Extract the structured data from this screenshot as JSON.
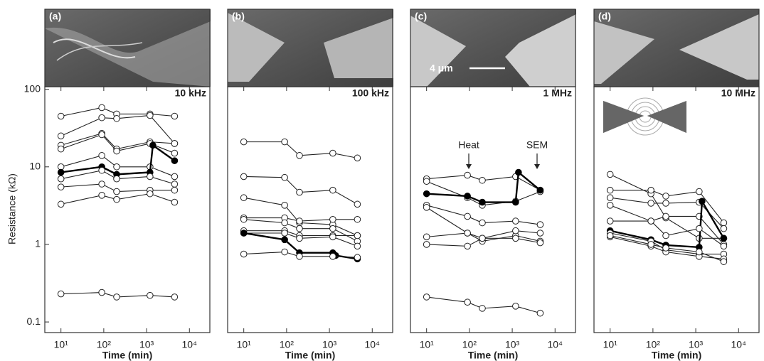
{
  "chart_data": [
    {
      "type": "line",
      "label": "(a)",
      "frequency": "10 kHz",
      "xlabel": "Time (min)",
      "ylabel": "Resistance (kΩ)",
      "log_x": true,
      "log_y": true,
      "xlim": [
        4.2,
        30000
      ],
      "ylim": [
        0.073,
        108
      ],
      "xticks": [
        {
          "value": 10,
          "label": "10¹"
        },
        {
          "value": 100,
          "label": "10²"
        },
        {
          "value": 1000,
          "label": "10³"
        },
        {
          "value": 10000,
          "label": "10⁴"
        }
      ],
      "yticks": [
        0.1,
        1,
        10,
        100
      ],
      "series": [
        {
          "color": "#222",
          "x": [
            10,
            90,
            200,
            1200,
            4500
          ],
          "values": [
            45,
            58,
            48,
            48,
            45
          ]
        },
        {
          "color": "#222",
          "x": [
            10,
            90,
            200,
            1200,
            4500
          ],
          "values": [
            25,
            43,
            42,
            46,
            20
          ]
        },
        {
          "color": "#222",
          "x": [
            10,
            90,
            200,
            1200,
            4500
          ],
          "values": [
            19,
            27,
            17,
            21,
            20
          ]
        },
        {
          "color": "#222",
          "x": [
            10,
            90,
            200,
            1200,
            4500
          ],
          "values": [
            17,
            26,
            16,
            20,
            15
          ]
        },
        {
          "color": "#222",
          "x": [
            10,
            90,
            200,
            1200,
            4500
          ],
          "values": [
            10,
            14,
            10,
            10,
            7.5
          ]
        },
        {
          "color": "#000",
          "filled": true,
          "x": [
            10,
            90,
            200,
            1200,
            1400,
            4500
          ],
          "values": [
            8.5,
            10,
            8,
            8.5,
            19,
            12
          ]
        },
        {
          "color": "#222",
          "x": [
            10,
            90,
            200,
            1200,
            4500
          ],
          "values": [
            7,
            9,
            7,
            7.5,
            6
          ]
        },
        {
          "color": "#222",
          "x": [
            10,
            90,
            200,
            1200,
            4500
          ],
          "values": [
            5.5,
            6,
            4.8,
            5,
            5
          ]
        },
        {
          "color": "#222",
          "x": [
            10,
            90,
            200,
            1200,
            4500
          ],
          "values": [
            3.3,
            4.3,
            3.8,
            4.5,
            3.5
          ]
        },
        {
          "color": "#222",
          "x": [
            10,
            90,
            200,
            1200,
            4500
          ],
          "values": [
            0.23,
            0.24,
            0.21,
            0.22,
            0.21
          ]
        }
      ]
    },
    {
      "type": "line",
      "label": "(b)",
      "frequency": "100 kHz",
      "xlabel": "Time (min)",
      "log_x": true,
      "log_y": true,
      "xlim": [
        4.2,
        30000
      ],
      "ylim": [
        0.073,
        108
      ],
      "xticks": [
        {
          "value": 10,
          "label": "10¹"
        },
        {
          "value": 100,
          "label": "10²"
        },
        {
          "value": 1000,
          "label": "10³"
        },
        {
          "value": 10000,
          "label": "10⁴"
        }
      ],
      "series": [
        {
          "color": "#222",
          "x": [
            10,
            90,
            200,
            1200,
            4500
          ],
          "values": [
            21,
            21,
            14,
            15,
            13
          ]
        },
        {
          "color": "#222",
          "x": [
            10,
            90,
            200,
            1200,
            4500
          ],
          "values": [
            7.5,
            7.3,
            4.7,
            5,
            3.3
          ]
        },
        {
          "color": "#222",
          "x": [
            10,
            90,
            200,
            1200,
            4500
          ],
          "values": [
            4,
            3.2,
            1.9,
            1.8,
            1.3
          ]
        },
        {
          "color": "#222",
          "x": [
            10,
            90,
            200,
            1200,
            4500
          ],
          "values": [
            2.2,
            2.2,
            2,
            2.1,
            2.1
          ]
        },
        {
          "color": "#222",
          "x": [
            10,
            90,
            200,
            1200,
            4500
          ],
          "values": [
            2.1,
            1.9,
            1.6,
            1.6,
            1.1
          ]
        },
        {
          "color": "#222",
          "x": [
            10,
            90,
            200,
            1200,
            4500
          ],
          "values": [
            1.5,
            1.5,
            1.3,
            1.3,
            1.3
          ]
        },
        {
          "color": "#222",
          "x": [
            10,
            90,
            200,
            1200,
            4500
          ],
          "values": [
            1.4,
            1.4,
            1.2,
            1.25,
            0.95
          ]
        },
        {
          "color": "#000",
          "filled": true,
          "x": [
            10,
            90,
            200,
            1200,
            1400,
            4500
          ],
          "values": [
            1.4,
            1.15,
            0.78,
            0.78,
            0.72,
            0.65
          ]
        },
        {
          "color": "#222",
          "x": [
            10,
            90,
            200,
            1200,
            4500
          ],
          "values": [
            0.75,
            0.8,
            0.7,
            0.7,
            0.68
          ]
        }
      ]
    },
    {
      "type": "line",
      "label": "(c)",
      "frequency": "1 MHz",
      "scale_bar": "4 μm",
      "annotations": [
        "Heat",
        "SEM"
      ],
      "xlabel": "Time (min)",
      "log_x": true,
      "log_y": true,
      "xlim": [
        4.2,
        30000
      ],
      "ylim": [
        0.073,
        108
      ],
      "xticks": [
        {
          "value": 10,
          "label": "10¹"
        },
        {
          "value": 100,
          "label": "10²"
        },
        {
          "value": 1000,
          "label": "10³"
        },
        {
          "value": 10000,
          "label": "10⁴"
        }
      ],
      "series": [
        {
          "color": "#222",
          "x": [
            10,
            90,
            200,
            1200,
            4500
          ],
          "values": [
            7,
            7.8,
            6.7,
            7.5,
            5
          ]
        },
        {
          "color": "#222",
          "x": [
            10,
            90,
            200,
            1200,
            4500
          ],
          "values": [
            6.5,
            4,
            3.2,
            3.6,
            4.8
          ]
        },
        {
          "color": "#000",
          "filled": true,
          "x": [
            10,
            90,
            200,
            1200,
            1400,
            4500
          ],
          "values": [
            4.5,
            4.2,
            3.5,
            3.5,
            8.5,
            5
          ]
        },
        {
          "color": "#222",
          "x": [
            10,
            90,
            200,
            1200,
            4500
          ],
          "values": [
            3.2,
            2.3,
            1.9,
            2,
            1.8
          ]
        },
        {
          "color": "#222",
          "x": [
            10,
            90,
            200,
            1200,
            4500
          ],
          "values": [
            3,
            1.4,
            1.1,
            1.3,
            1.1
          ]
        },
        {
          "color": "#222",
          "x": [
            10,
            90,
            200,
            1200,
            4500
          ],
          "values": [
            1.25,
            1.4,
            1.2,
            1.5,
            1.4
          ]
        },
        {
          "color": "#222",
          "x": [
            10,
            90,
            200,
            1200,
            4500
          ],
          "values": [
            1,
            0.95,
            1.2,
            1.2,
            1.05
          ]
        },
        {
          "color": "#222",
          "x": [
            10,
            90,
            200,
            1200,
            4500
          ],
          "values": [
            0.21,
            0.18,
            0.15,
            0.16,
            0.13
          ]
        }
      ]
    },
    {
      "type": "line",
      "label": "(d)",
      "frequency": "10 MHz",
      "xlabel": "Time (min)",
      "log_x": true,
      "log_y": true,
      "xlim": [
        4.2,
        30000
      ],
      "ylim": [
        0.073,
        108
      ],
      "xticks": [
        {
          "value": 10,
          "label": "10¹"
        },
        {
          "value": 100,
          "label": "10²"
        },
        {
          "value": 1000,
          "label": "10³"
        },
        {
          "value": 10000,
          "label": "10⁴"
        }
      ],
      "series": [
        {
          "color": "#222",
          "x": [
            10,
            90,
            200,
            1200,
            4500
          ],
          "values": [
            8,
            4.5,
            2.2,
            1.2,
            1.2
          ]
        },
        {
          "color": "#222",
          "x": [
            10,
            90,
            200,
            1200,
            4500
          ],
          "values": [
            5,
            5,
            4.2,
            4.8,
            1.9
          ]
        },
        {
          "color": "#222",
          "x": [
            10,
            90,
            200,
            1200,
            4500
          ],
          "values": [
            4,
            3.4,
            3.4,
            3.5,
            1.6
          ]
        },
        {
          "color": "#222",
          "x": [
            10,
            90,
            200,
            1200,
            4500
          ],
          "values": [
            3.2,
            2,
            2.3,
            2.3,
            1
          ]
        },
        {
          "color": "#000",
          "filled": true,
          "x": [
            10,
            90,
            200,
            1200,
            1400,
            4500
          ],
          "values": [
            1.5,
            1.15,
            0.98,
            0.92,
            3.6,
            1.2
          ]
        },
        {
          "color": "#222",
          "x": [
            10,
            90,
            200,
            1200,
            4500
          ],
          "values": [
            2,
            2,
            1.3,
            1.6,
            0.95
          ]
        },
        {
          "color": "#222",
          "x": [
            10,
            90,
            200,
            1200,
            4500
          ],
          "values": [
            1.4,
            1.1,
            0.85,
            0.75,
            0.75
          ]
        },
        {
          "color": "#222",
          "x": [
            10,
            90,
            200,
            1200,
            4500
          ],
          "values": [
            1.25,
            0.95,
            0.8,
            0.7,
            0.65
          ]
        },
        {
          "color": "#222",
          "x": [
            10,
            90,
            200,
            1200,
            4500
          ],
          "values": [
            1.3,
            1.0,
            0.9,
            0.8,
            0.6
          ]
        }
      ]
    }
  ]
}
